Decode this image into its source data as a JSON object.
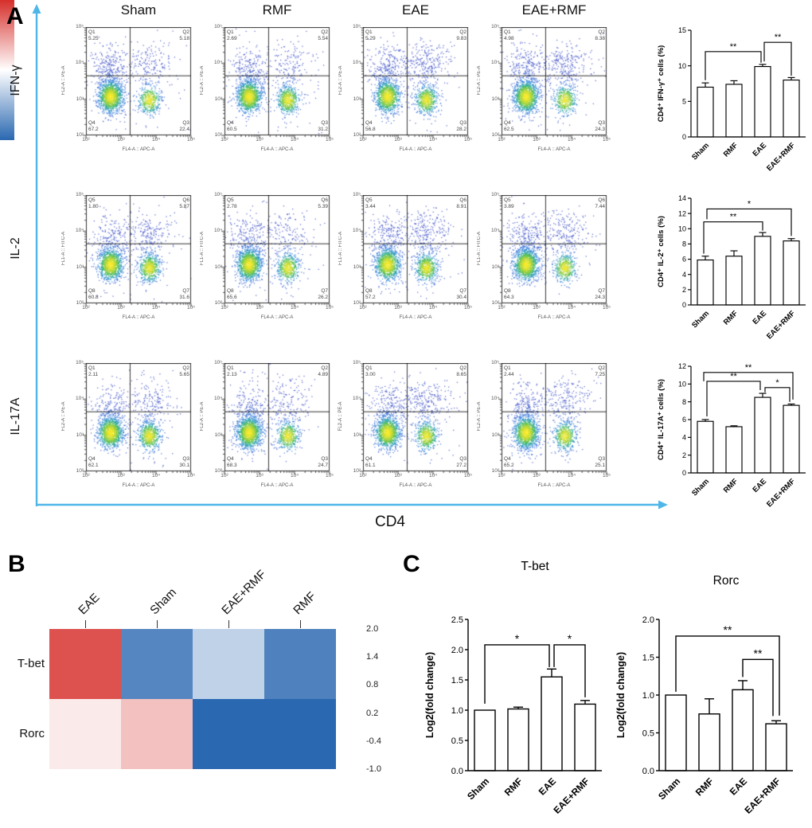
{
  "figure": {
    "panel_a_label": "A",
    "panel_b_label": "B",
    "panel_c_label": "C",
    "x_axis_label": "CD4",
    "arrow_color": "#4fb6e8",
    "col_headers": [
      "Sham",
      "RMF",
      "EAE",
      "EAE+RMF"
    ],
    "row_labels": [
      "IFN-γ",
      "IL-2",
      "IL-17A"
    ],
    "flow_ticks": [
      "10²",
      "10³",
      "10⁴",
      "10⁵"
    ]
  },
  "flow_plots": [
    {
      "group": "Sham",
      "cytokine": "IFN-γ",
      "y_axis": "FL2-A :: PE-A",
      "x_axis": "FL4-A :: APC-A",
      "quadrants": {
        "tl": {
          "name": "Q1",
          "value": "5.25"
        },
        "tr": {
          "name": "Q2",
          "value": "5.18"
        },
        "bl": {
          "name": "Q4",
          "value": "67.2"
        },
        "br": {
          "name": "Q3",
          "value": "22.4"
        }
      }
    },
    {
      "group": "RMF",
      "cytokine": "IFN-γ",
      "y_axis": "FL2-A :: PE-A",
      "x_axis": "FL4-A :: APC-A",
      "quadrants": {
        "tl": {
          "name": "Q1",
          "value": "2.69"
        },
        "tr": {
          "name": "Q2",
          "value": "5.54"
        },
        "bl": {
          "name": "Q4",
          "value": "60.5"
        },
        "br": {
          "name": "Q3",
          "value": "31.2"
        }
      }
    },
    {
      "group": "EAE",
      "cytokine": "IFN-γ",
      "y_axis": "FL2-A :: PE-A",
      "x_axis": "FL4-A :: APC-A",
      "quadrants": {
        "tl": {
          "name": "Q1",
          "value": "5.29"
        },
        "tr": {
          "name": "Q2",
          "value": "9.83"
        },
        "bl": {
          "name": "Q4",
          "value": "56.8"
        },
        "br": {
          "name": "Q3",
          "value": "28.2"
        }
      }
    },
    {
      "group": "EAE+RMF",
      "cytokine": "IFN-γ",
      "y_axis": "FL2-A :: PE-A",
      "x_axis": "FL4-A :: APC-A",
      "quadrants": {
        "tl": {
          "name": "Q1",
          "value": "4.98"
        },
        "tr": {
          "name": "Q2",
          "value": "8.38"
        },
        "bl": {
          "name": "Q4",
          "value": "62.5"
        },
        "br": {
          "name": "Q3",
          "value": "24.3"
        }
      }
    },
    {
      "group": "Sham",
      "cytokine": "IL-2",
      "y_axis": "FL1-A :: FITC-A",
      "x_axis": "FL4-A :: APC-A",
      "quadrants": {
        "tl": {
          "name": "Q5",
          "value": "1.80"
        },
        "tr": {
          "name": "Q6",
          "value": "5.87"
        },
        "bl": {
          "name": "Q8",
          "value": "60.8"
        },
        "br": {
          "name": "Q7",
          "value": "31.6"
        }
      }
    },
    {
      "group": "RMF",
      "cytokine": "IL-2",
      "y_axis": "FL1-A :: FITC-A",
      "x_axis": "FL4-A :: APC-A",
      "quadrants": {
        "tl": {
          "name": "Q5",
          "value": "2.78"
        },
        "tr": {
          "name": "Q6",
          "value": "5.39"
        },
        "bl": {
          "name": "Q8",
          "value": "65.6"
        },
        "br": {
          "name": "Q7",
          "value": "26.2"
        }
      }
    },
    {
      "group": "EAE",
      "cytokine": "IL-2",
      "y_axis": "FL1-A :: FITC-A",
      "x_axis": "FL4-A :: APC-A",
      "quadrants": {
        "tl": {
          "name": "Q5",
          "value": "3.44"
        },
        "tr": {
          "name": "Q6",
          "value": "8.91"
        },
        "bl": {
          "name": "Q8",
          "value": "57.2"
        },
        "br": {
          "name": "Q7",
          "value": "30.4"
        }
      }
    },
    {
      "group": "EAE+RMF",
      "cytokine": "IL-2",
      "y_axis": "FL1-A :: FITC-A",
      "x_axis": "FL4-A :: APC-A",
      "quadrants": {
        "tl": {
          "name": "Q5",
          "value": "3.89"
        },
        "tr": {
          "name": "Q6",
          "value": "7.44"
        },
        "bl": {
          "name": "Q8",
          "value": "64.3"
        },
        "br": {
          "name": "Q7",
          "value": "24.3"
        }
      }
    },
    {
      "group": "Sham",
      "cytokine": "IL-17A",
      "y_axis": "FL2-A :: PE-A",
      "x_axis": "FL4-A :: APC-A",
      "quadrants": {
        "tl": {
          "name": "Q1",
          "value": "2.11"
        },
        "tr": {
          "name": "Q2",
          "value": "5.65"
        },
        "bl": {
          "name": "Q4",
          "value": "62.1"
        },
        "br": {
          "name": "Q3",
          "value": "30.1"
        }
      }
    },
    {
      "group": "RMF",
      "cytokine": "IL-17A",
      "y_axis": "FL2-A :: PE-A",
      "x_axis": "FL4-A :: APC-A",
      "quadrants": {
        "tl": {
          "name": "Q1",
          "value": "2.13"
        },
        "tr": {
          "name": "Q2",
          "value": "4.89"
        },
        "bl": {
          "name": "Q4",
          "value": "68.3"
        },
        "br": {
          "name": "Q3",
          "value": "24.7"
        }
      }
    },
    {
      "group": "EAE",
      "cytokine": "IL-17A",
      "y_axis": "FL2-A :: PE-A",
      "x_axis": "FL4-A :: APC-A",
      "quadrants": {
        "tl": {
          "name": "Q1",
          "value": "3.00"
        },
        "tr": {
          "name": "Q2",
          "value": "8.65"
        },
        "bl": {
          "name": "Q4",
          "value": "61.1"
        },
        "br": {
          "name": "Q3",
          "value": "27.2"
        }
      }
    },
    {
      "group": "EAE+RMF",
      "cytokine": "IL-17A",
      "y_axis": "FL2-A :: PE-A",
      "x_axis": "FL4-A :: APC-A",
      "quadrants": {
        "tl": {
          "name": "Q1",
          "value": "2.44"
        },
        "tr": {
          "name": "Q2",
          "value": "7.25"
        },
        "bl": {
          "name": "Q4",
          "value": "65.2"
        },
        "br": {
          "name": "Q3",
          "value": "25.1"
        }
      }
    }
  ],
  "chart_data": [
    {
      "id": "ifng-bar",
      "type": "bar",
      "title": "",
      "ylabel": "CD4⁺ IFN-γ⁺ cells (%)",
      "categories": [
        "Sham",
        "RMF",
        "EAE",
        "EAE+RMF"
      ],
      "values": [
        7.0,
        7.4,
        9.9,
        8.0
      ],
      "errors": [
        0.6,
        0.5,
        0.3,
        0.35
      ],
      "ylim": [
        0,
        15
      ],
      "ytick_labels": [
        "0",
        "5",
        "10",
        "15"
      ],
      "significance": [
        {
          "i1": 0,
          "i2": 2,
          "y": 12.0,
          "label": "**",
          "d1": 36,
          "d2": 14,
          "o2": -2
        },
        {
          "i1": 2,
          "i2": 3,
          "y": 13.3,
          "label": "**",
          "d1": 24,
          "d2": 42,
          "o1": 2
        }
      ]
    },
    {
      "id": "il2-bar",
      "type": "bar",
      "title": "",
      "ylabel": "CD4⁺ IL-2⁺ cells (%)",
      "categories": [
        "Sham",
        "RMF",
        "EAE",
        "EAE+RMF"
      ],
      "values": [
        5.9,
        6.4,
        9.0,
        8.4
      ],
      "errors": [
        0.5,
        0.7,
        0.5,
        0.3
      ],
      "ylim": [
        0,
        14
      ],
      "ytick_labels": [
        "0",
        "2",
        "4",
        "6",
        "8",
        "10",
        "12",
        "14"
      ],
      "significance": [
        {
          "i1": 0,
          "i2": 2,
          "y": 10.9,
          "label": "**",
          "d1": 40,
          "d2": 11,
          "o1": -2
        },
        {
          "i1": 0,
          "i2": 3,
          "y": 12.6,
          "label": "*",
          "d1": 13,
          "d2": 34,
          "o1": 2
        }
      ]
    },
    {
      "id": "il17a-bar",
      "type": "bar",
      "title": "",
      "ylabel": "CD4⁺ IL-17A⁺ cells (%)",
      "categories": [
        "Sham",
        "RMF",
        "EAE",
        "EAE+RMF"
      ],
      "values": [
        5.8,
        5.2,
        8.5,
        7.6
      ],
      "errors": [
        0.2,
        0.1,
        0.45,
        0.15
      ],
      "ylim": [
        0,
        12
      ],
      "ytick_labels": [
        "0",
        "2",
        "4",
        "6",
        "8",
        "10",
        "12"
      ],
      "significance": [
        {
          "i1": 0,
          "i2": 3,
          "y": 11.3,
          "label": "**",
          "d1": 11,
          "d2": 34,
          "o1": -2,
          "o2": 2
        },
        {
          "i1": 0,
          "i2": 2,
          "y": 10.3,
          "label": "**",
          "d1": 44,
          "d2": 11,
          "o1": 2,
          "o2": -3
        },
        {
          "i1": 2,
          "i2": 3,
          "y": 9.6,
          "label": "*",
          "d1": 6,
          "d2": 18,
          "o1": 3,
          "o2": -2
        }
      ]
    },
    {
      "id": "tbet-qpcr",
      "type": "bar",
      "title": "T-bet",
      "ylabel": "Log2(fold change)",
      "categories": [
        "Sham",
        "RMF",
        "EAE",
        "EAE+RMF"
      ],
      "values": [
        1.0,
        1.02,
        1.55,
        1.1
      ],
      "errors": [
        0,
        0.03,
        0.13,
        0.06
      ],
      "ylim": [
        0,
        2.5
      ],
      "ytick_labels": [
        "0.0",
        "0.5",
        "1.0",
        "1.5",
        "2.0",
        "2.5"
      ],
      "significance": [
        {
          "i1": 0,
          "i2": 2,
          "y": 2.08,
          "label": "*",
          "d1": 74,
          "d2": 28,
          "o2": -3
        },
        {
          "i1": 2,
          "i2": 3,
          "y": 2.08,
          "label": "*",
          "d1": 28,
          "d2": 66,
          "o1": 3
        }
      ]
    },
    {
      "id": "rorc-qpcr",
      "type": "bar",
      "title": "Rorc",
      "ylabel": "Log2(fold change)",
      "categories": [
        "Sham",
        "RMF",
        "EAE",
        "EAE+RMF"
      ],
      "values": [
        1.0,
        0.75,
        1.07,
        0.62
      ],
      "errors": [
        0,
        0.2,
        0.12,
        0.04
      ],
      "ylim": [
        0,
        2.0
      ],
      "ytick_labels": [
        "0.0",
        "0.5",
        "1.0",
        "1.5",
        "2.0"
      ],
      "significance": [
        {
          "i1": 0,
          "i2": 3,
          "y": 1.78,
          "label": "**",
          "d1": 70,
          "d2": 100,
          "o2": 4
        },
        {
          "i1": 2,
          "i2": 3,
          "y": 1.47,
          "label": "**",
          "d1": 22,
          "d2": 71,
          "o2": -4
        }
      ]
    },
    {
      "id": "tf-heatmap",
      "type": "heatmap",
      "rows": [
        "T-bet",
        "Rorc"
      ],
      "columns": [
        "EAE",
        "Sham",
        "EAE+RMF",
        "RMF"
      ],
      "values": [
        [
          1.75,
          -0.7,
          0.05,
          -0.75
        ],
        [
          0.65,
          0.95,
          -1.0,
          -1.0
        ]
      ],
      "color_scale": {
        "min": -1.0,
        "max": 2.0,
        "white_at": 0.5,
        "max_color": "#d62f2a",
        "min_color": "#2a68b1",
        "tick_labels": [
          "2.0",
          "1.4",
          "0.8",
          "0.2",
          "-0.4",
          "-1.0"
        ]
      }
    }
  ]
}
